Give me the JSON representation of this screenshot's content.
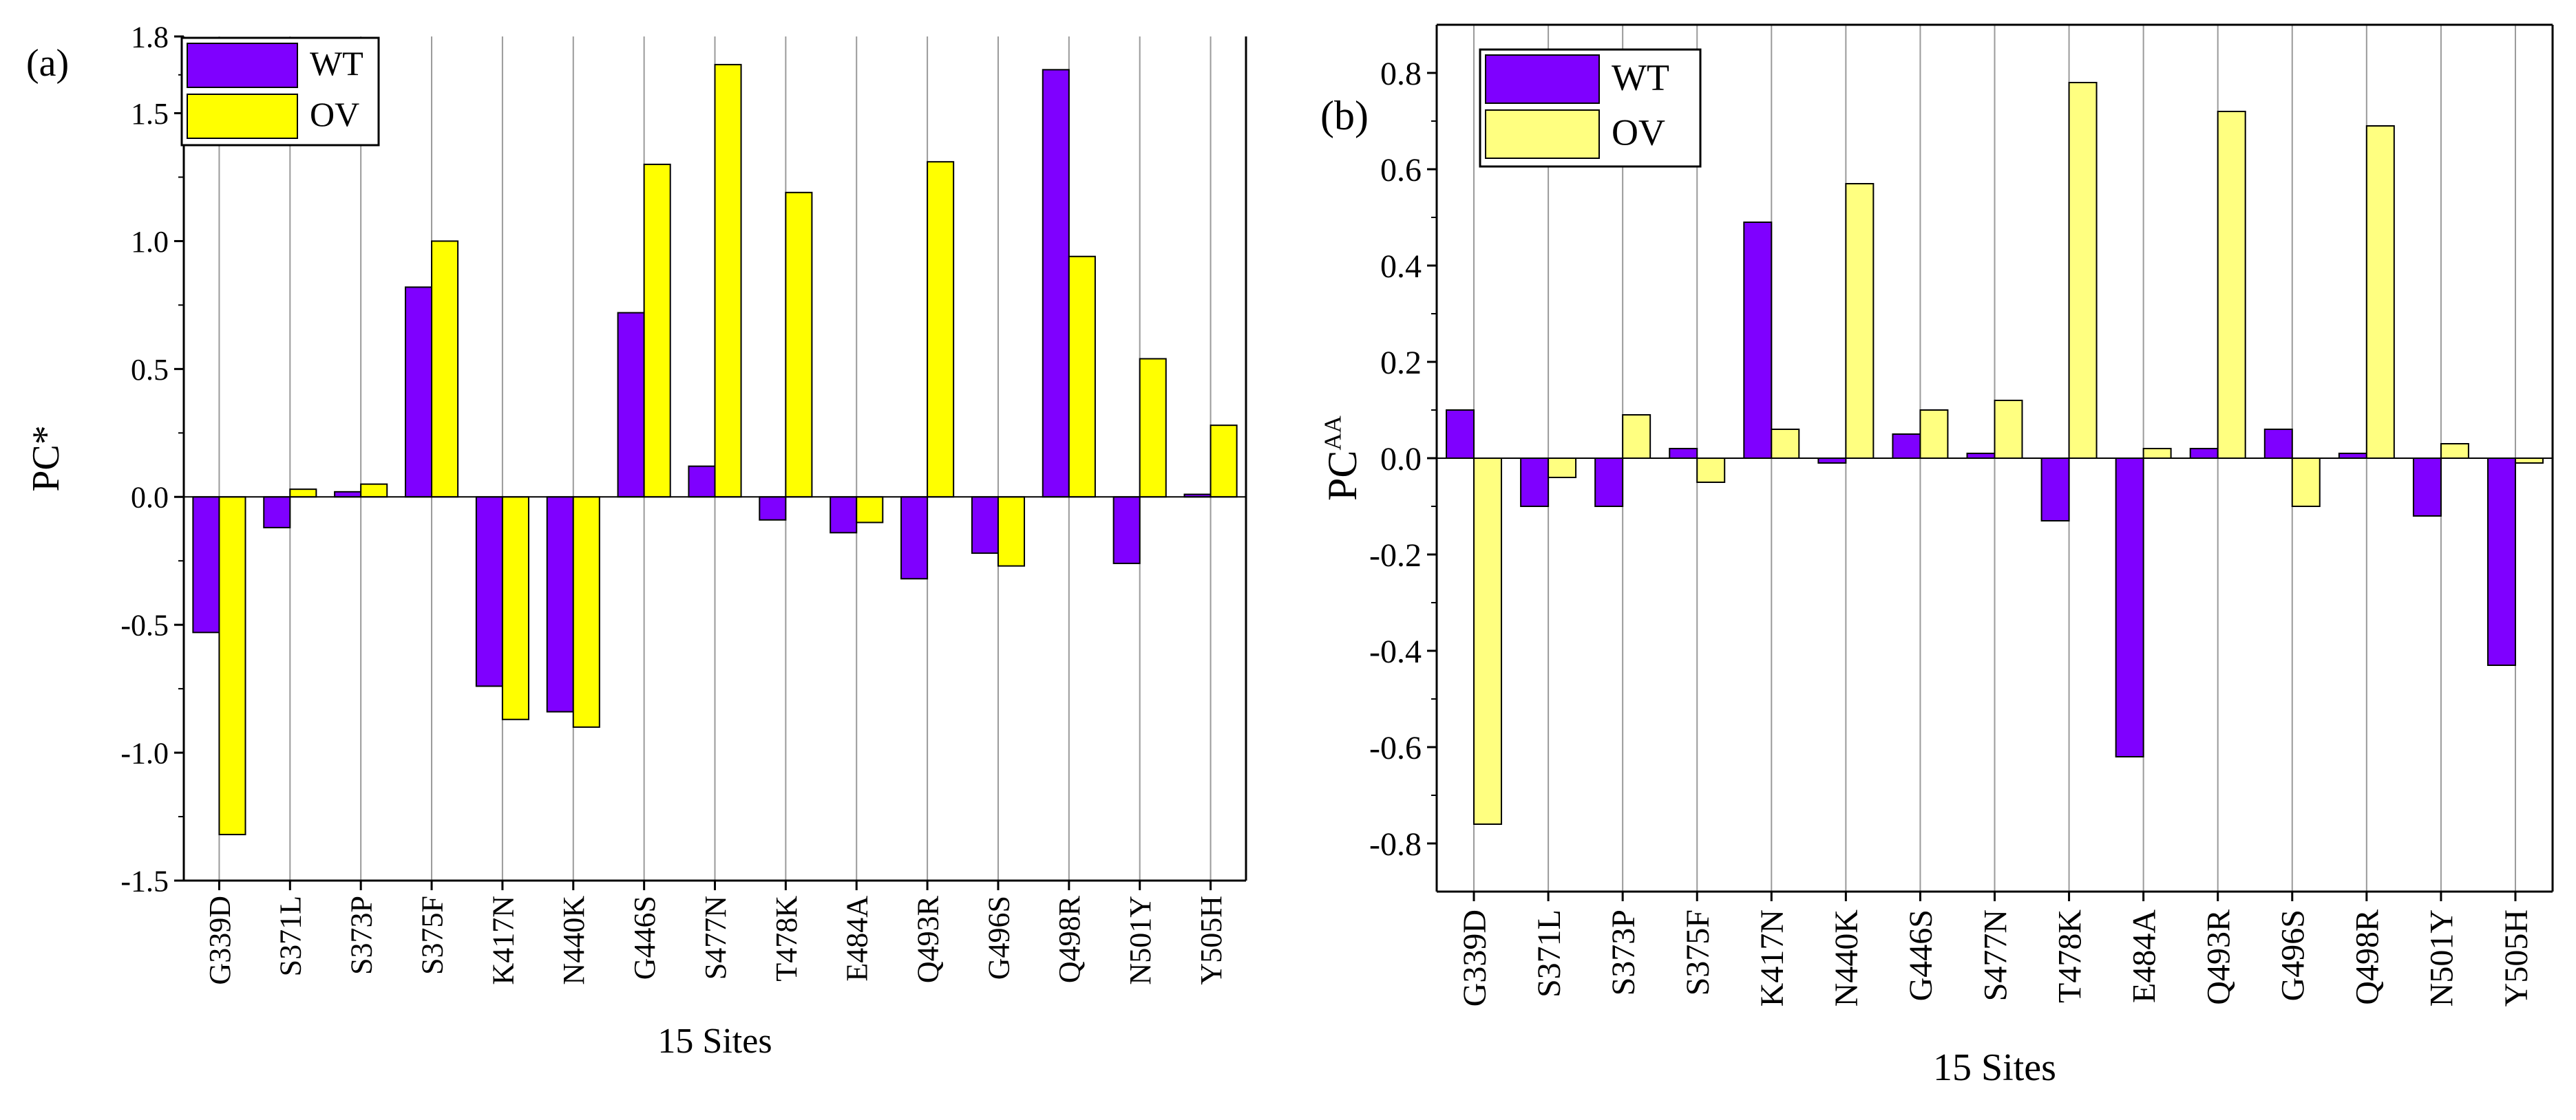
{
  "colors": {
    "wt": "#7F00FF",
    "ov_a": "#FFFF00",
    "ov_b": "#FFFF80",
    "grid": "#9a9a9a",
    "axis": "#000000"
  },
  "chart_data": [
    {
      "type": "bar",
      "panel_label": "(a)",
      "title": "",
      "xlabel": "15 Sites",
      "ylabel": "PC*",
      "ylim": [
        -1.5,
        1.8
      ],
      "yticks": [
        "-1.5",
        "-1.0",
        "-0.5",
        "0.0",
        "0.5",
        "1.0",
        "1.5",
        "1.8"
      ],
      "grid": "vertical",
      "legend_position": "top-left",
      "categories": [
        "G339D",
        "S371L",
        "S373P",
        "S375F",
        "K417N",
        "N440K",
        "G446S",
        "S477N",
        "T478K",
        "E484A",
        "Q493R",
        "G496S",
        "Q498R",
        "N501Y",
        "Y505H"
      ],
      "series": [
        {
          "name": "WT",
          "values": [
            -0.53,
            -0.12,
            0.02,
            0.82,
            -0.74,
            -0.84,
            0.72,
            0.12,
            -0.09,
            -0.14,
            -0.32,
            -0.22,
            1.67,
            -0.26,
            0.01
          ]
        },
        {
          "name": "OV",
          "values": [
            -1.32,
            0.03,
            0.05,
            1.0,
            -0.87,
            -0.9,
            1.3,
            1.69,
            1.19,
            -0.1,
            1.31,
            -0.27,
            0.94,
            0.54,
            0.28
          ]
        }
      ]
    },
    {
      "type": "bar",
      "panel_label": "(b)",
      "title": "",
      "xlabel": "15 Sites",
      "ylabel": "PC",
      "ylabel_superscript": "AA",
      "ylim": [
        -0.9,
        0.9
      ],
      "yticks": [
        "-0.8",
        "-0.6",
        "-0.4",
        "-0.2",
        "0.0",
        "0.2",
        "0.4",
        "0.6",
        "0.8"
      ],
      "grid": "vertical",
      "legend_position": "top-left",
      "categories": [
        "G339D",
        "S371L",
        "S373P",
        "S375F",
        "K417N",
        "N440K",
        "G446S",
        "S477N",
        "T478K",
        "E484A",
        "Q493R",
        "G496S",
        "Q498R",
        "N501Y",
        "Y505H"
      ],
      "series": [
        {
          "name": "WT",
          "values": [
            0.1,
            -0.1,
            -0.1,
            0.02,
            0.49,
            -0.01,
            0.05,
            0.01,
            -0.13,
            -0.62,
            0.02,
            0.06,
            0.01,
            -0.12,
            -0.43
          ]
        },
        {
          "name": "OV",
          "values": [
            -0.76,
            -0.04,
            0.09,
            -0.05,
            0.06,
            0.57,
            0.1,
            0.12,
            0.78,
            0.02,
            0.72,
            -0.1,
            0.69,
            0.03,
            -0.01
          ]
        }
      ]
    }
  ]
}
